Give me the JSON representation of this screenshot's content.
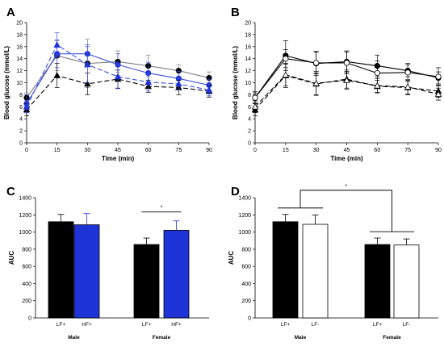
{
  "colors": {
    "black": "#000000",
    "blue": "#1f34d6",
    "blue_line": "#3b50e0",
    "gray": "#7f7f7f",
    "white": "#ffffff"
  },
  "chart_data": [
    {
      "panel": "A",
      "type": "line",
      "xlabel": "Time (min)",
      "ylabel": "Blood glucose (mmol/L)",
      "xlim": [
        0,
        90
      ],
      "ylim": [
        0,
        20
      ],
      "xticks": [
        0,
        15,
        30,
        45,
        60,
        75,
        90
      ],
      "yticks": [
        0,
        2,
        4,
        6,
        8,
        10,
        12,
        14,
        16,
        18,
        20
      ],
      "series": [
        {
          "marker": "circle",
          "fill": "#000000",
          "line": "#7f7f7f",
          "dash": "",
          "x": [
            0,
            15,
            30,
            45,
            60,
            75,
            90
          ],
          "y": [
            7.5,
            14.5,
            13.2,
            13.5,
            12.8,
            12.0,
            10.8
          ],
          "err": [
            0.8,
            2.5,
            4.0,
            1.8,
            1.8,
            1.0,
            1.0
          ]
        },
        {
          "marker": "circle",
          "fill": "#1f34d6",
          "line": "#3b50e0",
          "dash": "",
          "x": [
            0,
            15,
            30,
            45,
            60,
            75,
            90
          ],
          "y": [
            6.5,
            14.8,
            14.8,
            13.0,
            11.6,
            10.7,
            9.6
          ],
          "err": [
            1.5,
            2.3,
            1.5,
            1.8,
            1.8,
            1.2,
            1.0
          ]
        },
        {
          "marker": "triangle",
          "fill": "#000000",
          "line": "#000000",
          "dash": "6,3",
          "x": [
            0,
            15,
            30,
            45,
            60,
            75,
            90
          ],
          "y": [
            5.5,
            11.2,
            9.8,
            10.6,
            9.4,
            9.2,
            8.6
          ],
          "err": [
            1.0,
            2.0,
            1.8,
            1.5,
            1.0,
            1.2,
            1.0
          ]
        },
        {
          "marker": "triangle",
          "fill": "#1f34d6",
          "line": "#3b50e0",
          "dash": "6,3",
          "x": [
            0,
            15,
            30,
            45,
            60,
            75,
            90
          ],
          "y": [
            6.0,
            16.3,
            13.0,
            11.0,
            10.1,
            9.8,
            8.8
          ],
          "err": [
            1.0,
            2.0,
            3.0,
            2.0,
            1.5,
            1.0,
            1.0
          ]
        }
      ]
    },
    {
      "panel": "B",
      "type": "line",
      "xlabel": "Time (min)",
      "ylabel": "Blood glucose (mmol/L)",
      "xlim": [
        0,
        90
      ],
      "ylim": [
        0,
        20
      ],
      "xticks": [
        0,
        15,
        30,
        45,
        60,
        75,
        90
      ],
      "yticks": [
        0,
        2,
        4,
        6,
        8,
        10,
        12,
        14,
        16,
        18,
        20
      ],
      "series": [
        {
          "marker": "circle",
          "fill": "#000000",
          "line": "#000000",
          "dash": "",
          "x": [
            0,
            15,
            30,
            45,
            60,
            75,
            90
          ],
          "y": [
            7.5,
            14.5,
            13.2,
            13.5,
            12.8,
            12.0,
            10.8
          ],
          "err": [
            0.8,
            2.5,
            2.0,
            1.8,
            1.8,
            1.0,
            1.0
          ]
        },
        {
          "marker": "circle",
          "fill": "#ffffff",
          "line": "#000000",
          "dash": "",
          "x": [
            0,
            15,
            30,
            45,
            60,
            75,
            90
          ],
          "y": [
            7.5,
            14.0,
            13.3,
            13.3,
            11.6,
            11.7,
            11.0
          ],
          "err": [
            1.0,
            1.5,
            1.8,
            1.8,
            2.0,
            1.5,
            1.5
          ]
        },
        {
          "marker": "triangle",
          "fill": "#000000",
          "line": "#000000",
          "dash": "6,3",
          "x": [
            0,
            15,
            30,
            45,
            60,
            75,
            90
          ],
          "y": [
            5.5,
            11.2,
            9.8,
            10.6,
            9.4,
            9.2,
            8.6
          ],
          "err": [
            1.0,
            2.0,
            1.8,
            1.5,
            1.0,
            1.2,
            1.0
          ]
        },
        {
          "marker": "triangle",
          "fill": "#ffffff",
          "line": "#000000",
          "dash": "6,3",
          "x": [
            0,
            15,
            30,
            45,
            60,
            75,
            90
          ],
          "y": [
            6.0,
            11.3,
            9.9,
            10.4,
            9.5,
            9.3,
            8.1
          ],
          "err": [
            1.0,
            1.8,
            2.0,
            1.5,
            1.2,
            1.2,
            1.0
          ]
        }
      ]
    },
    {
      "panel": "C",
      "type": "bar",
      "ylabel": "AUC",
      "ylim": [
        0,
        1400
      ],
      "yticks": [
        0,
        200,
        400,
        600,
        800,
        1000,
        1200,
        1400
      ],
      "groups": [
        "Male",
        "Female"
      ],
      "bar_labels": [
        "LF+",
        "HF+"
      ],
      "bar_fills": [
        "#000000",
        "#1f34d6"
      ],
      "values": [
        [
          1120,
          1085
        ],
        [
          855,
          1020
        ]
      ],
      "errors": [
        [
          85,
          130
        ],
        [
          75,
          110
        ]
      ],
      "annotation": "*"
    },
    {
      "panel": "D",
      "type": "bar",
      "ylabel": "AUC",
      "ylim": [
        0,
        1400
      ],
      "yticks": [
        0,
        200,
        400,
        600,
        800,
        1000,
        1200,
        1400
      ],
      "groups": [
        "Male",
        "Female"
      ],
      "bar_labels": [
        "LF+",
        "LF-"
      ],
      "bar_fills": [
        "#000000",
        "#ffffff"
      ],
      "values": [
        [
          1120,
          1090
        ],
        [
          855,
          850
        ]
      ],
      "errors": [
        [
          85,
          110
        ],
        [
          75,
          70
        ]
      ],
      "annotation": "*"
    }
  ]
}
